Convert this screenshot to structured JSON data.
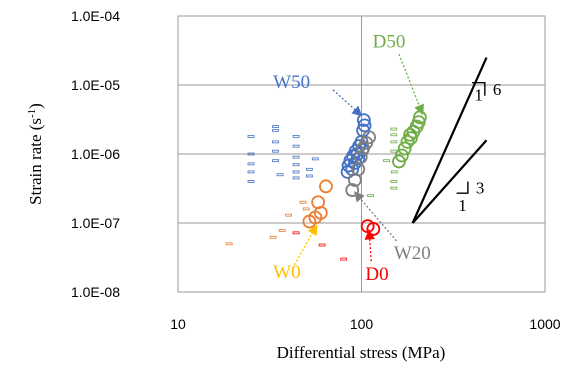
{
  "chart_data": {
    "type": "scatter",
    "xlabel": "Differential stress (MPa)",
    "ylabel_main": "Strain rate (s",
    "ylabel_sup": "-1",
    "ylabel_close": ")",
    "x_scale": "log",
    "y_scale": "log",
    "xlim": [
      10,
      1000
    ],
    "ylim": [
      1e-08,
      0.0001
    ],
    "grid": true,
    "x_ticks": [
      {
        "value": 10,
        "label": "10"
      },
      {
        "value": 100,
        "label": "100"
      },
      {
        "value": 1000,
        "label": "1000"
      }
    ],
    "y_ticks": [
      {
        "value": 1e-08,
        "label": "1.0E-08"
      },
      {
        "value": 1e-07,
        "label": "1.0E-07"
      },
      {
        "value": 1e-06,
        "label": "1.0E-06"
      },
      {
        "value": 1e-05,
        "label": "1.0E-05"
      },
      {
        "value": 0.0001,
        "label": "1.0E-04"
      }
    ],
    "series": [
      {
        "name": "W50",
        "color": "#4472c4",
        "marker": "circle",
        "points": [
          [
            103,
            3.1e-06
          ],
          [
            104,
            2.6e-06
          ],
          [
            102,
            2.2e-06
          ],
          [
            97,
            1.3e-06
          ],
          [
            101,
            1.15e-06
          ],
          [
            95,
            1e-06
          ],
          [
            90,
            9.3e-07
          ],
          [
            96,
            8.6e-07
          ],
          [
            87,
            8e-07
          ],
          [
            92,
            7.4e-07
          ],
          [
            85,
            6.8e-07
          ],
          [
            89,
            6e-07
          ],
          [
            84,
            5.5e-07
          ],
          [
            100,
            1.5e-06
          ],
          [
            93,
            1.1e-06
          ]
        ]
      },
      {
        "name": "D50",
        "color": "#70ad47",
        "marker": "circle",
        "points": [
          [
            208,
            3.4e-06
          ],
          [
            205,
            2.9e-06
          ],
          [
            200,
            2.5e-06
          ],
          [
            192,
            2.1e-06
          ],
          [
            184,
            1.9e-06
          ],
          [
            178,
            1.5e-06
          ],
          [
            172,
            1.2e-06
          ],
          [
            166,
            9.5e-07
          ],
          [
            160,
            7.8e-07
          ],
          [
            186,
            1.7e-06
          ]
        ]
      },
      {
        "name": "W20",
        "color": "#7f7f7f",
        "marker": "circle",
        "points": [
          [
            110,
            1.75e-06
          ],
          [
            106,
            1.45e-06
          ],
          [
            102,
            1.2e-06
          ],
          [
            99,
            9e-07
          ],
          [
            96,
            6e-07
          ],
          [
            92,
            4.2e-07
          ],
          [
            89,
            3e-07
          ]
        ]
      },
      {
        "name": "W0",
        "color": "#ed7d31",
        "marker": "circle",
        "points": [
          [
            64,
            3.4e-07
          ],
          [
            58,
            2e-07
          ],
          [
            60,
            1.4e-07
          ],
          [
            56,
            1.2e-07
          ],
          [
            52,
            1.05e-07
          ]
        ]
      },
      {
        "name": "D0",
        "color": "#ff0000",
        "marker": "circle",
        "points": [
          [
            108,
            9e-08
          ],
          [
            116,
            8.2e-08
          ]
        ]
      }
    ],
    "dash_markers": [
      {
        "color": "#4472c4",
        "points": [
          [
            25,
            1.8e-06
          ],
          [
            25,
            1e-06
          ],
          [
            25,
            7.2e-07
          ],
          [
            25,
            5.5e-07
          ],
          [
            25,
            4e-07
          ],
          [
            34,
            2.5e-06
          ],
          [
            34,
            2.2e-06
          ],
          [
            34,
            1.5e-06
          ],
          [
            34,
            1.1e-06
          ],
          [
            34,
            8e-07
          ],
          [
            36,
            5e-07
          ],
          [
            44,
            1.8e-06
          ],
          [
            44,
            1.3e-06
          ],
          [
            44,
            9e-07
          ],
          [
            44,
            7e-07
          ],
          [
            44,
            5.5e-07
          ],
          [
            44,
            4.5e-07
          ],
          [
            52,
            6e-07
          ],
          [
            52,
            4.8e-07
          ],
          [
            56,
            8.5e-07
          ]
        ]
      },
      {
        "color": "#70ad47",
        "points": [
          [
            150,
            2.3e-06
          ],
          [
            150,
            1.9e-06
          ],
          [
            150,
            1.5e-06
          ],
          [
            150,
            1.1e-06
          ],
          [
            137,
            8e-07
          ],
          [
            151,
            5.5e-07
          ],
          [
            150,
            4e-07
          ],
          [
            150,
            3.2e-07
          ],
          [
            112,
            2.5e-07
          ]
        ]
      },
      {
        "color": "#ed7d31",
        "points": [
          [
            19,
            5e-08
          ],
          [
            33,
            6.2e-08
          ],
          [
            37,
            7.8e-08
          ],
          [
            40,
            1.3e-07
          ],
          [
            48,
            2e-07
          ],
          [
            50,
            1.6e-07
          ]
        ]
      },
      {
        "color": "#ff0000",
        "points": [
          [
            44,
            7.2e-08
          ],
          [
            61,
            4.8e-08
          ],
          [
            80,
            3e-08
          ]
        ]
      }
    ],
    "annotations": [
      {
        "text": "W50",
        "color": "#4472c4",
        "label_at": [
          33,
          9e-06
        ],
        "arrow_from": [
          70,
          8.5e-06
        ],
        "arrow_to": [
          100,
          3.6e-06
        ]
      },
      {
        "text": "D50",
        "color": "#70ad47",
        "label_at": [
          115,
          3.5e-05
        ],
        "arrow_from": [
          160,
          2.8e-05
        ],
        "arrow_to": [
          215,
          3.8e-06
        ]
      },
      {
        "text": "W20",
        "color": "#7f7f7f",
        "label_at": [
          150,
          3e-08
        ],
        "arrow_from": [
          155,
          5.5e-08
        ],
        "arrow_to": [
          92,
          2.8e-07
        ]
      },
      {
        "text": "W0",
        "color": "#ffc000",
        "label_at": [
          33,
          1.6e-08
        ],
        "arrow_from": [
          42,
          2.2e-08
        ],
        "arrow_to": [
          57,
          9.2e-08
        ]
      },
      {
        "text": "D0",
        "color": "#ff0000",
        "label_at": [
          105,
          1.5e-08
        ],
        "arrow_from": [
          113,
          2.8e-08
        ],
        "arrow_to": [
          110,
          7.8e-08
        ]
      }
    ],
    "slope_triangles": [
      {
        "slope": "6",
        "base_label": "1",
        "line_from": [
          190,
          1e-07
        ],
        "line_to": [
          480,
          2.5e-05
        ],
        "tri": [
          [
            400,
            1.08e-05
          ],
          [
            470,
            1.08e-05
          ],
          [
            470,
            7e-06
          ]
        ]
      },
      {
        "slope": "3",
        "base_label": "1",
        "line_from": [
          190,
          1e-07
        ],
        "line_to": [
          480,
          1.58e-06
        ],
        "tri": [
          [
            330,
            2.7e-07
          ],
          [
            380,
            2.7e-07
          ],
          [
            380,
            4e-07
          ]
        ]
      }
    ]
  }
}
